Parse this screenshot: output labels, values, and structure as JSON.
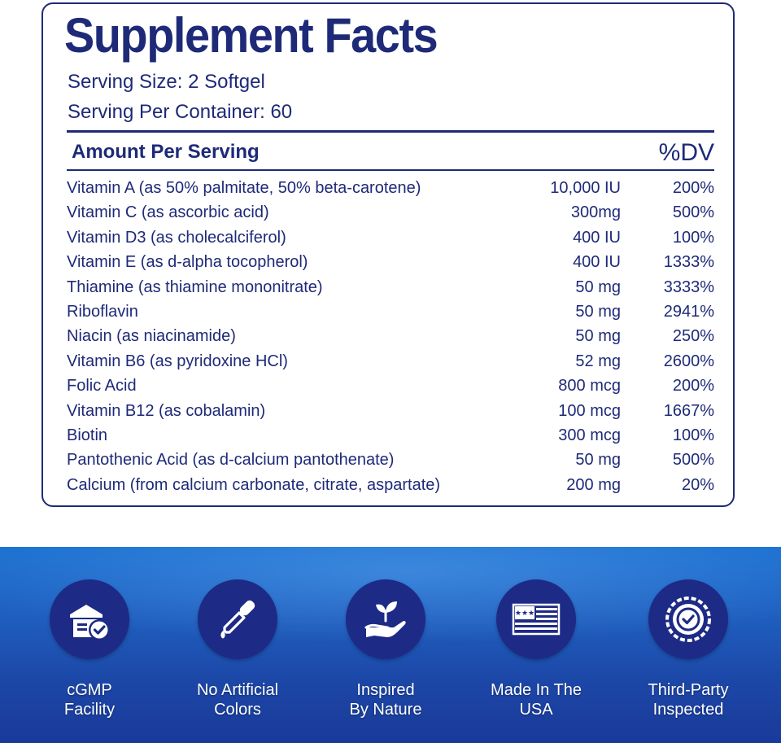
{
  "title": "Supplement Facts",
  "serving_size": "Serving Size: 2 Softgel",
  "servings_per_container": "Serving Per Container: 60",
  "header": {
    "amount_per_serving": "Amount Per Serving",
    "dv": "%DV"
  },
  "nutrients": [
    {
      "name": "Vitamin A (as 50% palmitate, 50% beta-carotene)",
      "amount": "10,000 IU",
      "dv": "200%"
    },
    {
      "name": "Vitamin C (as ascorbic acid)",
      "amount": "300mg",
      "dv": "500%"
    },
    {
      "name": "Vitamin D3 (as cholecalciferol)",
      "amount": "400 IU",
      "dv": "100%"
    },
    {
      "name": "Vitamin E (as d-alpha tocopherol)",
      "amount": "400 IU",
      "dv": "1333%"
    },
    {
      "name": "Thiamine (as thiamine mononitrate)",
      "amount": "50 mg",
      "dv": "3333%"
    },
    {
      "name": "Riboflavin",
      "amount": "50 mg",
      "dv": "2941%"
    },
    {
      "name": "Niacin (as niacinamide)",
      "amount": "50 mg",
      "dv": "250%"
    },
    {
      "name": "Vitamin B6 (as pyridoxine HCl)",
      "amount": "52 mg",
      "dv": "2600%"
    },
    {
      "name": "Folic Acid",
      "amount": "800 mcg",
      "dv": "200%"
    },
    {
      "name": "Vitamin B12 (as cobalamin)",
      "amount": "100 mcg",
      "dv": "1667%"
    },
    {
      "name": "Biotin",
      "amount": "300 mcg",
      "dv": "100%"
    },
    {
      "name": "Pantothenic Acid (as d-calcium pantothenate)",
      "amount": "50 mg",
      "dv": "500%"
    },
    {
      "name": "Calcium (from calcium carbonate, citrate, aspartate)",
      "amount": "200 mg",
      "dv": "20%"
    }
  ],
  "badges": [
    {
      "icon": "cgmp-facility-icon",
      "line1": "cGMP",
      "line2": "Facility"
    },
    {
      "icon": "dropper-icon",
      "line1": "No Artificial",
      "line2": "Colors"
    },
    {
      "icon": "plant-in-hand-icon",
      "line1": "Inspired",
      "line2": "By Nature"
    },
    {
      "icon": "usa-flag-icon",
      "line1": "Made In The",
      "line2": "USA"
    },
    {
      "icon": "inspected-seal-icon",
      "line1": "Third-Party",
      "line2": "Inspected"
    }
  ],
  "colors": {
    "navy": "#1e2a78",
    "badge_circle": "#1d2a86",
    "band_top": "#1a6fd0",
    "band_bottom": "#1a3a9a"
  }
}
